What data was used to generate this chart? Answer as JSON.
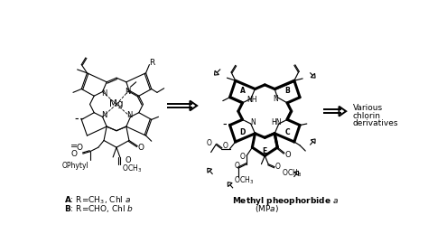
{
  "background_color": "#ffffff",
  "fig_width": 4.74,
  "fig_height": 2.69,
  "dpi": 100,
  "text_Mg": "Mg",
  "text_R": "R",
  "text_various": "Various",
  "text_chlorin": "chlorin",
  "text_derivatives": "derivatives",
  "text_OPhytyl": "OPhytyl",
  "label_A": "A",
  "label_B": "B",
  "label_C": "C",
  "label_D": "D",
  "label_E": "E"
}
